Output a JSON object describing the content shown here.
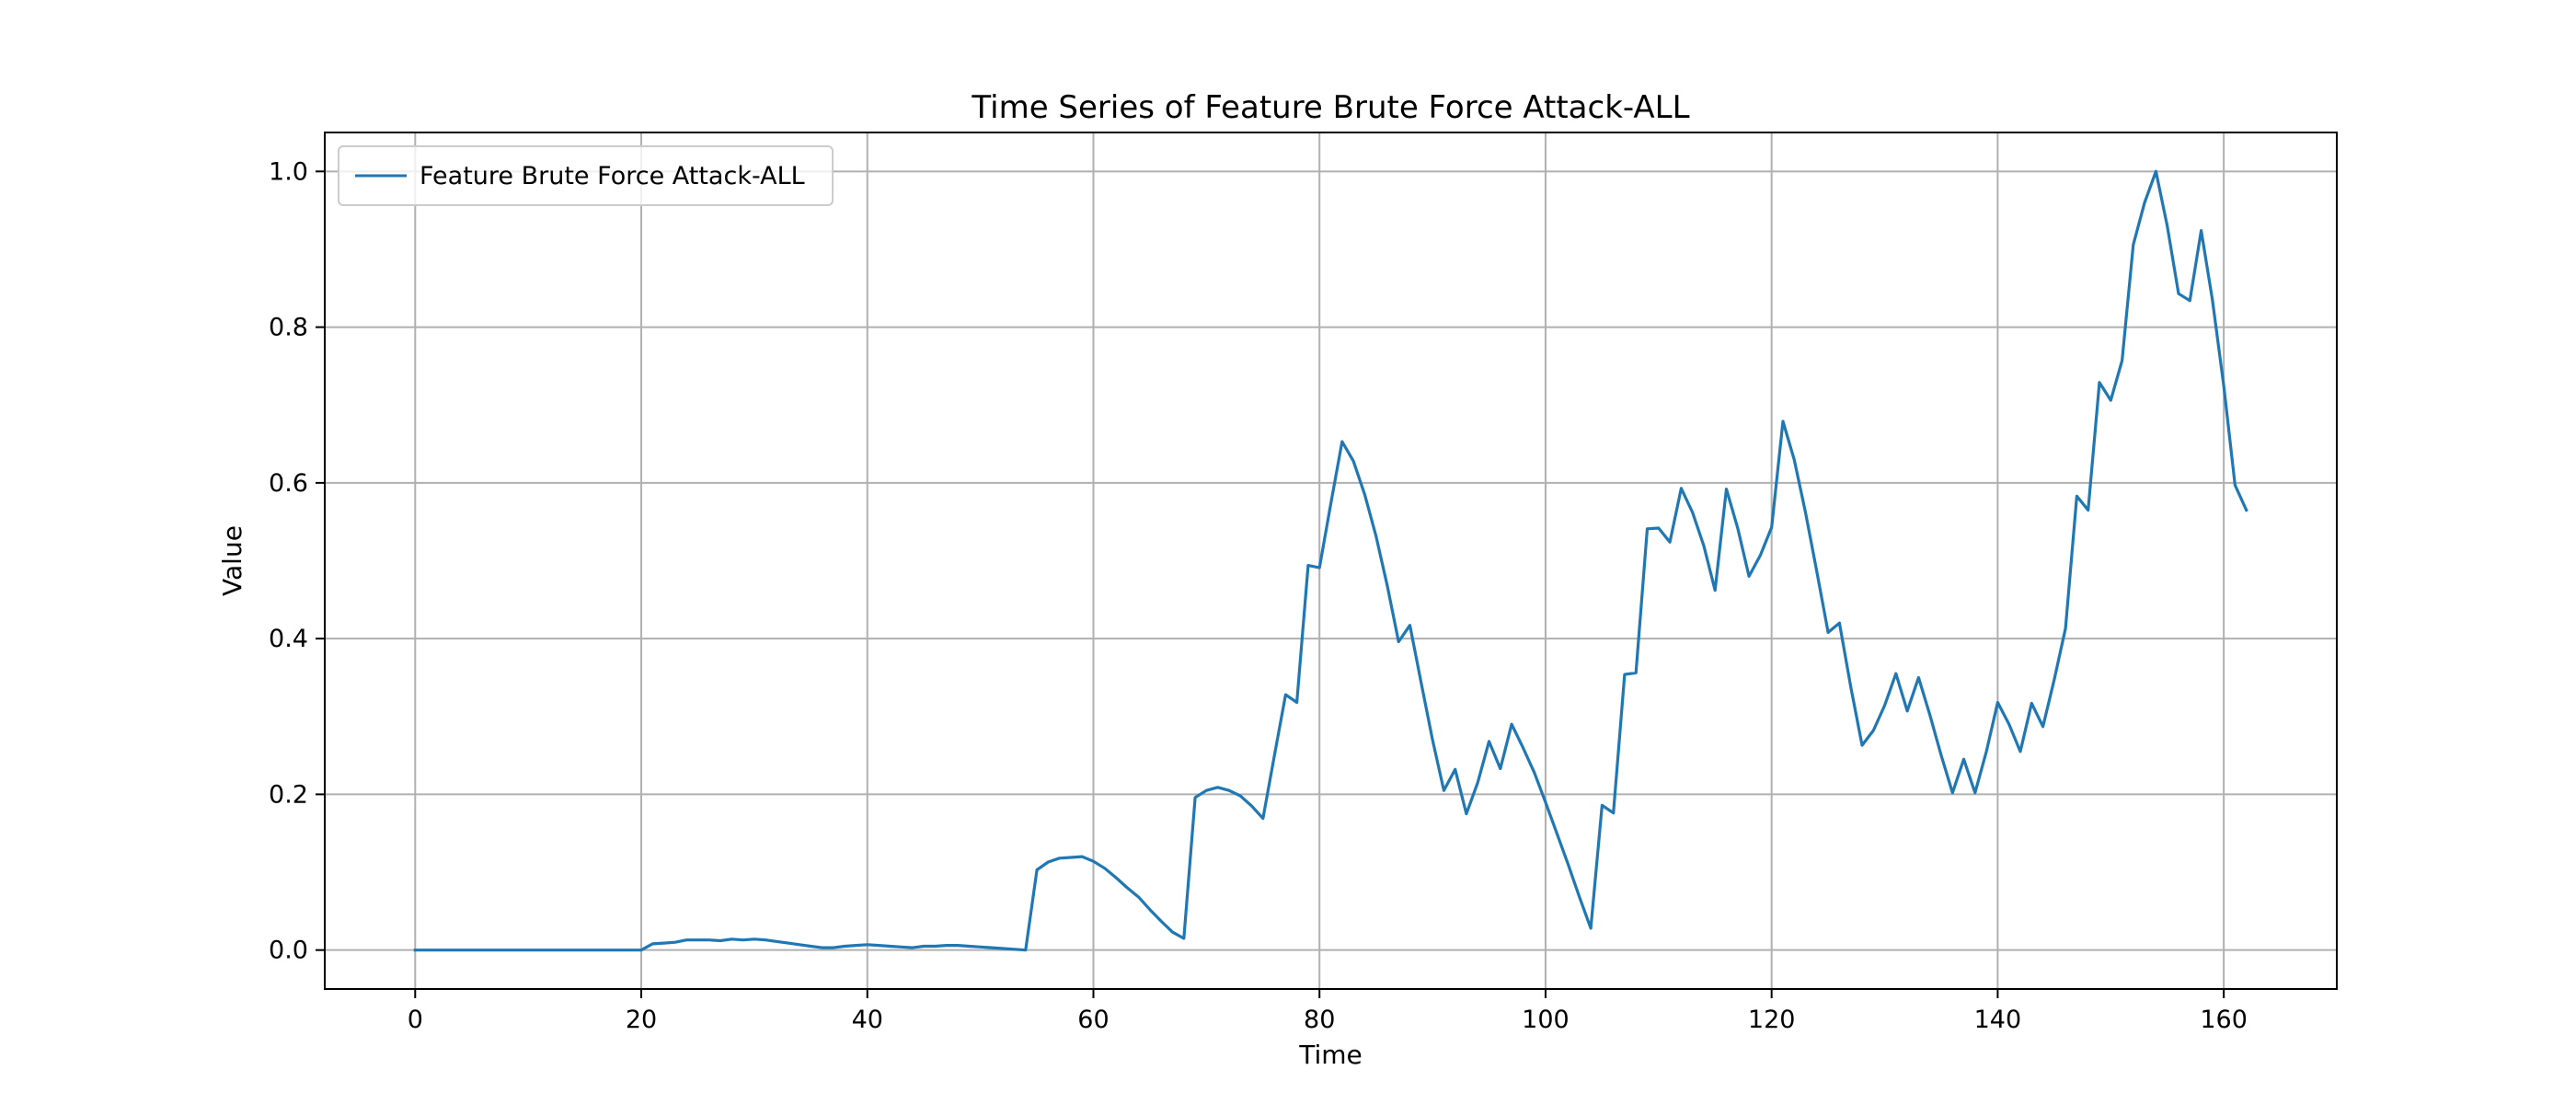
{
  "chart_data": {
    "type": "line",
    "title": "Time Series of Feature Brute Force Attack-ALL",
    "xlabel": "Time",
    "ylabel": "Value",
    "xlim": [
      -8,
      170
    ],
    "ylim": [
      -0.05,
      1.05
    ],
    "xticks": [
      0,
      20,
      40,
      60,
      80,
      100,
      120,
      140,
      160
    ],
    "yticks": [
      0.0,
      0.2,
      0.4,
      0.6,
      0.8,
      1.0
    ],
    "xtick_labels": [
      "0",
      "20",
      "40",
      "60",
      "80",
      "100",
      "120",
      "140",
      "160"
    ],
    "ytick_labels": [
      "0.0",
      "0.2",
      "0.4",
      "0.6",
      "0.8",
      "1.0"
    ],
    "grid": true,
    "legend": {
      "position": "top-left",
      "entries": [
        "Feature Brute Force Attack-ALL"
      ]
    },
    "colors": {
      "series": "#1f77b4",
      "grid": "#b0b0b0",
      "axes": "#000000"
    },
    "series": [
      {
        "name": "Feature Brute Force Attack-ALL",
        "x": [
          0,
          1,
          2,
          3,
          4,
          5,
          6,
          7,
          8,
          9,
          10,
          11,
          12,
          13,
          14,
          15,
          16,
          17,
          18,
          19,
          20,
          21,
          22,
          23,
          24,
          25,
          26,
          27,
          28,
          29,
          30,
          31,
          32,
          33,
          34,
          35,
          36,
          37,
          38,
          39,
          40,
          41,
          42,
          43,
          44,
          45,
          46,
          47,
          48,
          49,
          50,
          51,
          52,
          53,
          54,
          55,
          56,
          57,
          58,
          59,
          60,
          61,
          62,
          63,
          64,
          65,
          66,
          67,
          68,
          69,
          70,
          71,
          72,
          73,
          74,
          75,
          76,
          77,
          78,
          79,
          80,
          81,
          82,
          83,
          84,
          85,
          86,
          87,
          88,
          89,
          90,
          91,
          92,
          93,
          94,
          95,
          96,
          97,
          98,
          99,
          100,
          101,
          102,
          103,
          104,
          105,
          106,
          107,
          108,
          109,
          110,
          111,
          112,
          113,
          114,
          115,
          116,
          117,
          118,
          119,
          120,
          121,
          122,
          123,
          124,
          125,
          126,
          127,
          128,
          129,
          130,
          131,
          132,
          133,
          134,
          135,
          136,
          137,
          138,
          139,
          140,
          141,
          142,
          143,
          144,
          145,
          146,
          147,
          148,
          149,
          150,
          151,
          152,
          153,
          154,
          155,
          156,
          157,
          158,
          159,
          160,
          161,
          162
        ],
        "y": [
          0,
          0,
          0,
          0,
          0,
          0,
          0,
          0,
          0,
          0,
          0,
          0,
          0,
          0,
          0,
          0,
          0,
          0,
          0,
          0,
          0,
          0.008,
          0.009,
          0.01,
          0.013,
          0.013,
          0.013,
          0.012,
          0.014,
          0.013,
          0.014,
          0.013,
          0.011,
          0.009,
          0.007,
          0.005,
          0.003,
          0.003,
          0.005,
          0.006,
          0.007,
          0.006,
          0.005,
          0.004,
          0.003,
          0.005,
          0.005,
          0.006,
          0.006,
          0.005,
          0.004,
          0.003,
          0.002,
          0.001,
          0.0,
          0.103,
          0.113,
          0.118,
          0.119,
          0.12,
          0.114,
          0.105,
          0.093,
          0.08,
          0.068,
          0.052,
          0.037,
          0.023,
          0.015,
          0.196,
          0.205,
          0.209,
          0.205,
          0.198,
          0.185,
          0.169,
          0.249,
          0.328,
          0.318,
          0.494,
          0.491,
          0.573,
          0.653,
          0.628,
          0.585,
          0.532,
          0.468,
          0.396,
          0.417,
          0.343,
          0.27,
          0.205,
          0.232,
          0.175,
          0.215,
          0.268,
          0.233,
          0.29,
          0.26,
          0.228,
          0.19,
          0.15,
          0.11,
          0.068,
          0.028,
          0.186,
          0.176,
          0.354,
          0.356,
          0.541,
          0.542,
          0.524,
          0.593,
          0.562,
          0.519,
          0.462,
          0.592,
          0.542,
          0.48,
          0.507,
          0.543,
          0.679,
          0.63,
          0.562,
          0.486,
          0.408,
          0.42,
          0.338,
          0.263,
          0.282,
          0.314,
          0.355,
          0.307,
          0.35,
          0.302,
          0.25,
          0.202,
          0.245,
          0.202,
          0.255,
          0.318,
          0.29,
          0.255,
          0.317,
          0.287,
          0.347,
          0.413,
          0.583,
          0.565,
          0.729,
          0.706,
          0.757,
          0.906,
          0.96,
          1.0,
          0.93,
          0.843,
          0.834,
          0.924,
          0.835,
          0.725,
          0.597,
          0.565
        ]
      }
    ]
  }
}
